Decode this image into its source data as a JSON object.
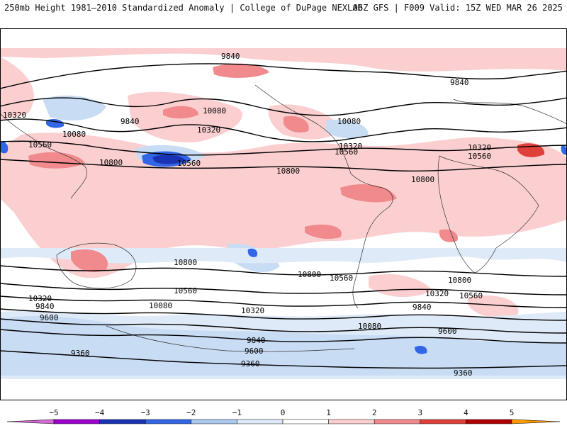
{
  "header": {
    "title_left": "250mb Height 1981–2010 Standardized Anomaly | College of DuPage NEXLAB",
    "title_right": "06Z GFS | F009 Valid: 15Z WED MAR 26 2025"
  },
  "map": {
    "field": "250mb geopotential height contours with standardized anomaly shading",
    "contour_labels": [
      "9840",
      "10080",
      "10320",
      "10560",
      "10800",
      "9840",
      "10080",
      "10320",
      "10560",
      "10800",
      "10080",
      "10320",
      "10560",
      "10800",
      "9840",
      "10560",
      "10320",
      "10800",
      "10800",
      "10560",
      "10320",
      "10080",
      "9840",
      "9600",
      "9360",
      "10800",
      "10560",
      "10320",
      "10080",
      "9840",
      "9600",
      "9360",
      "10800",
      "10560",
      "10320",
      "10080",
      "9840",
      "9600",
      "9360"
    ]
  },
  "colorbar": {
    "ticks": [
      "−5",
      "−4",
      "−3",
      "−2",
      "−1",
      "0",
      "1",
      "2",
      "3",
      "4",
      "5"
    ],
    "colors": [
      "#d16ad1",
      "#9b00cc",
      "#1a33b3",
      "#3366e6",
      "#a8c8f0",
      "#dfeaf8",
      "#ffffff",
      "#fbcfd0",
      "#f08a8c",
      "#e0403a",
      "#b00000",
      "#ff9900"
    ]
  }
}
